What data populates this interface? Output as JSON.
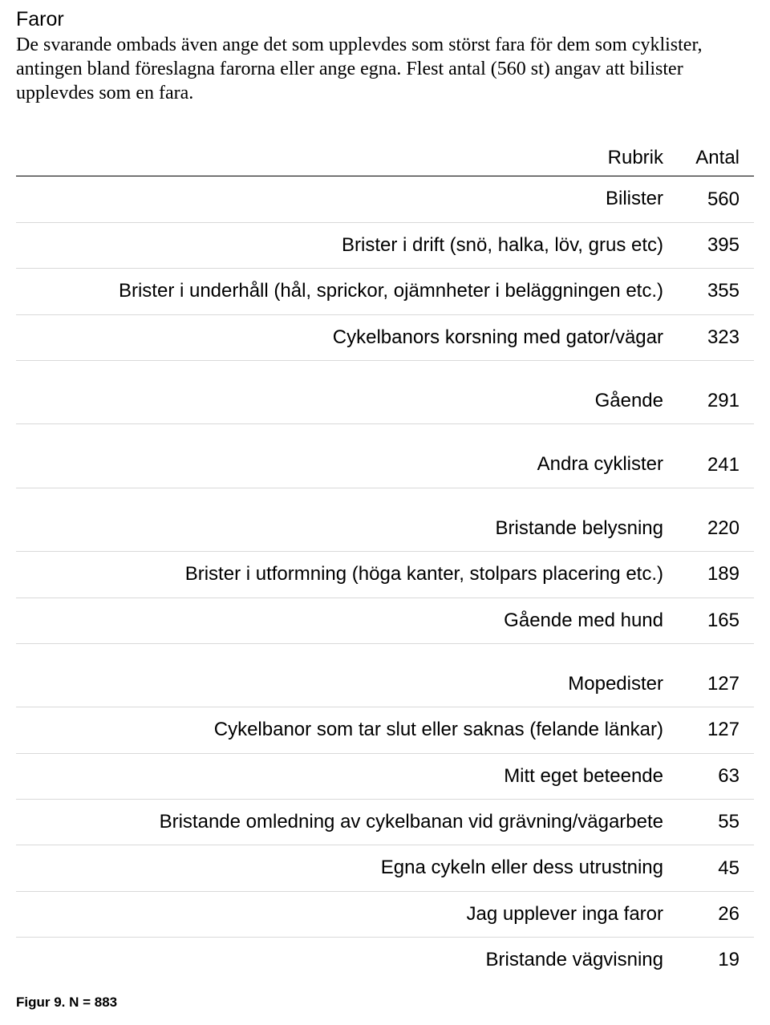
{
  "document": {
    "heading": "Faror",
    "paragraph": "De svarande ombads även ange det som upplevdes som störst fara för dem som cyklister, antingen bland föreslagna farorna eller ange egna. Flest antal (560 st) angav att bilister upplevdes som en fara.",
    "caption": "Figur 9. N = 883"
  },
  "table": {
    "columns": {
      "label": "Rubrik",
      "value": "Antal"
    },
    "rows": [
      {
        "label": "Bilister",
        "value": "560"
      },
      {
        "label": "Brister i drift (snö, halka, löv, grus etc)",
        "value": "395"
      },
      {
        "label": "Brister i underhåll (hål, sprickor, ojämnheter i beläggningen etc.)",
        "value": "355"
      },
      {
        "label": "Cykelbanors korsning med gator/vägar",
        "value": "323"
      },
      {
        "label": "Gående",
        "value": "291"
      },
      {
        "label": "Andra cyklister",
        "value": "241"
      },
      {
        "label": "Bristande belysning",
        "value": "220"
      },
      {
        "label": "Brister i utformning (höga kanter, stolpars placering etc.)",
        "value": "189"
      },
      {
        "label": "Gående med hund",
        "value": "165"
      },
      {
        "label": "Mopedister",
        "value": "127"
      },
      {
        "label": "Cykelbanor som tar slut eller saknas (felande länkar)",
        "value": "127"
      },
      {
        "label": "Mitt eget beteende",
        "value": "63"
      },
      {
        "label": "Bristande omledning av cykelbanan vid grävning/vägarbete",
        "value": "55"
      },
      {
        "label": "Egna cykeln eller dess utrustning",
        "value": "45"
      },
      {
        "label": "Jag upplever inga faror",
        "value": "26"
      },
      {
        "label": "Bristande vägvisning",
        "value": "19"
      }
    ],
    "spacer_after": [
      4,
      5,
      6,
      9
    ],
    "colors": {
      "border": "#d9d9d9",
      "header_border": "#000000",
      "text": "#000000",
      "background": "#ffffff"
    },
    "font_sizes": {
      "heading": 25,
      "paragraph": 24,
      "table": 24,
      "caption": 17
    }
  }
}
